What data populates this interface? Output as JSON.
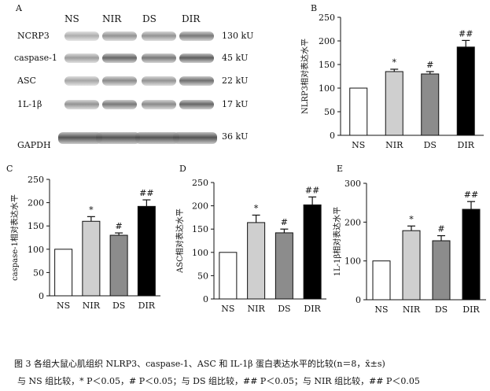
{
  "western_blot": {
    "panel_label": "A",
    "columns": [
      "NS",
      "NIR",
      "DS",
      "DIR"
    ],
    "rows": [
      {
        "label": "NCRP3",
        "kda": "130 kU",
        "intensity": [
          0.45,
          0.6,
          0.6,
          0.75
        ]
      },
      {
        "label": "caspase-1",
        "kda": "45 kU",
        "intensity": [
          0.55,
          0.85,
          0.75,
          0.9
        ]
      },
      {
        "label": "ASC",
        "kda": "22 kU",
        "intensity": [
          0.5,
          0.65,
          0.6,
          0.8
        ]
      },
      {
        "label": "1L-1β",
        "kda": "17 kU",
        "intensity": [
          0.6,
          0.75,
          0.65,
          0.85
        ]
      },
      {
        "label": "GAPDH",
        "kda": "36 kU",
        "intensity": [
          0.95,
          0.95,
          0.95,
          0.95
        ]
      }
    ]
  },
  "chart_data": [
    {
      "panel_label": "B",
      "type": "bar",
      "categories": [
        "NS",
        "NIR",
        "DS",
        "DIR"
      ],
      "values": [
        100,
        135,
        130,
        187
      ],
      "errors": [
        0,
        5,
        5,
        14
      ],
      "annotations": [
        "",
        "*",
        "#",
        "##"
      ],
      "ylabel": "NLRP3相对表达水平",
      "ylim": [
        0,
        250
      ],
      "yticks": [
        0,
        50,
        100,
        150,
        200,
        250
      ],
      "colors": [
        "#ffffff",
        "#cfcfcf",
        "#8c8c8c",
        "#000000"
      ]
    },
    {
      "panel_label": "C",
      "type": "bar",
      "categories": [
        "NS",
        "NIR",
        "DS",
        "DIR"
      ],
      "values": [
        100,
        160,
        130,
        192
      ],
      "errors": [
        0,
        10,
        5,
        14
      ],
      "annotations": [
        "",
        "*",
        "#",
        "##"
      ],
      "ylabel": "caspase-1相对表达水平",
      "ylim": [
        0,
        250
      ],
      "yticks": [
        0,
        50,
        100,
        150,
        200,
        250
      ],
      "colors": [
        "#ffffff",
        "#cfcfcf",
        "#8c8c8c",
        "#000000"
      ]
    },
    {
      "panel_label": "D",
      "type": "bar",
      "categories": [
        "NS",
        "NIR",
        "DS",
        "DIR"
      ],
      "values": [
        100,
        164,
        142,
        202
      ],
      "errors": [
        0,
        16,
        8,
        17
      ],
      "annotations": [
        "",
        "*",
        "#",
        "##"
      ],
      "ylabel": "ASC相对表达水平",
      "ylim": [
        0,
        250
      ],
      "yticks": [
        0,
        50,
        100,
        150,
        200,
        250
      ],
      "colors": [
        "#ffffff",
        "#cfcfcf",
        "#8c8c8c",
        "#000000"
      ]
    },
    {
      "panel_label": "E",
      "type": "bar",
      "categories": [
        "NS",
        "NIR",
        "DS",
        "DIR"
      ],
      "values": [
        100,
        178,
        152,
        233
      ],
      "errors": [
        0,
        12,
        13,
        20
      ],
      "annotations": [
        "",
        "*",
        "#",
        "##"
      ],
      "ylabel": "1L-1β相对表达水平",
      "ylim": [
        0,
        300
      ],
      "yticks": [
        0,
        100,
        200,
        300
      ],
      "colors": [
        "#ffffff",
        "#cfcfcf",
        "#8c8c8c",
        "#000000"
      ]
    }
  ],
  "caption": {
    "line1": "图 3   各组大鼠心肌组织 NLRP3、caspase-1、ASC 和 IL-1β 蛋白表达水平的比较(n＝8，x̄±s)",
    "line2": "与 NS 组比较，* P＜0.05，# P＜0.05；与 DS 组比较，## P＜0.05；与 NIR 组比较，## P＜0.05"
  }
}
